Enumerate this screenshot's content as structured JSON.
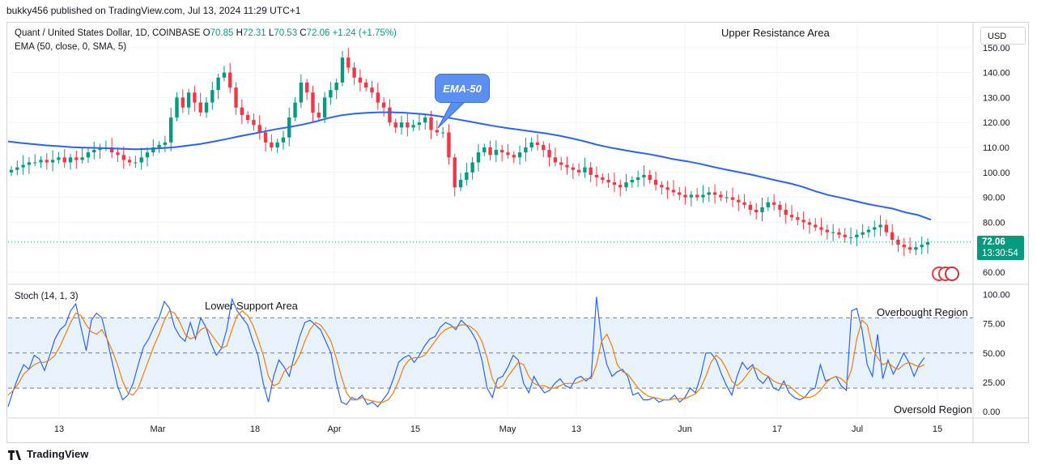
{
  "header": {
    "publisher_line": "bukky456 published on TradingView.com, Jul 13, 2024 11:29 UTC+1"
  },
  "legend": {
    "symbol": "Quant / United States Dollar, 1D, COINBASE",
    "o_label": "O",
    "o_value": "70.85",
    "h_label": "H",
    "h_value": "72.31",
    "l_label": "L",
    "l_value": "70.53",
    "c_label": "C",
    "c_value": "72.06",
    "change": "+1.24 (+1.75%)",
    "ema_line": "EMA (50, close, 0, SMA, 5)",
    "stoch_line": "Stoch (14, 1, 3)"
  },
  "currency_button": "USD",
  "last_price": {
    "price": "72.06",
    "countdown": "13:30:54"
  },
  "annotations": {
    "upper_resistance": "Upper Resistance Area",
    "lower_support": "Lower Support Area",
    "overbought": "Overbought Region",
    "oversold": "Oversold Region",
    "ema_callout": "EMA-50"
  },
  "branding": {
    "logo_text": "TradingView"
  },
  "colors": {
    "up": "#089981",
    "down": "#f23645",
    "ema": "#2962ff",
    "stoch_k": "#2962ff",
    "stoch_d": "#f57c00",
    "band_fill": "#e8f2fd"
  },
  "chart_data": [
    {
      "type": "candlestick",
      "title": "Quant / United States Dollar, 1D, COINBASE",
      "ylim": [
        57,
        153
      ],
      "yticks": [
        "60.00",
        "70.00",
        "80.00",
        "90.00",
        "100.00",
        "110.00",
        "120.00",
        "130.00",
        "140.00",
        "150.00"
      ],
      "xticks": [
        "13",
        "Mar",
        "18",
        "Apr",
        "15",
        "May",
        "13",
        "Jun",
        "17",
        "Jul",
        "15"
      ],
      "grid": true,
      "last_close": 72.06,
      "candles_close": [
        101,
        102,
        103,
        104,
        104,
        105,
        104,
        105,
        106,
        104,
        106,
        105,
        106,
        108,
        109,
        110,
        110,
        108,
        107,
        105,
        104,
        104,
        106,
        108,
        110,
        111,
        112,
        122,
        130,
        126,
        132,
        128,
        124,
        128,
        133,
        138,
        140,
        134,
        126,
        123,
        121,
        119,
        116,
        112,
        110,
        112,
        114,
        122,
        128,
        136,
        132,
        124,
        122,
        130,
        133,
        136,
        146,
        142,
        138,
        136,
        134,
        132,
        128,
        126,
        120,
        118,
        120,
        118,
        119,
        120,
        122,
        117,
        116,
        116,
        106,
        94,
        97,
        100,
        104,
        108,
        110,
        107,
        109,
        108,
        107,
        106,
        108,
        110,
        112,
        111,
        109,
        106,
        104,
        103,
        102,
        101,
        100,
        102,
        99,
        98,
        97,
        96,
        95,
        94,
        96,
        97,
        98,
        99,
        97,
        95,
        94,
        93,
        92,
        91,
        90,
        91,
        90,
        91,
        92,
        91,
        90,
        90,
        89,
        88,
        87,
        85,
        84,
        86,
        88,
        87,
        85,
        83,
        82,
        81,
        80,
        79,
        78,
        77,
        76,
        76,
        75,
        74,
        74,
        75,
        76,
        77,
        78,
        79,
        76,
        73,
        71,
        70,
        69,
        70,
        71,
        72.06
      ],
      "ema50": [
        112.4,
        111.8,
        111.3,
        110.8,
        110.5,
        110.1,
        109.9,
        109.8,
        109.6,
        109.4,
        109.3,
        109.4,
        109.7,
        110.1,
        110.7,
        111.4,
        112.3,
        113.3,
        114.4,
        115.4,
        116.4,
        117.4,
        118.2,
        119.2,
        120.4,
        121.8,
        122.9,
        123.5,
        123.9,
        124.1,
        124.1,
        123.9,
        123.5,
        123.0,
        122.2,
        121.3,
        120.4,
        119.4,
        118.5,
        117.7,
        117.0,
        116.3,
        115.6,
        114.7,
        113.6,
        112.4,
        111.0,
        109.9,
        109.0,
        108.1,
        107.3,
        106.3,
        105.2,
        104.4,
        103.4,
        102.2,
        101.1,
        100.1,
        99.1,
        97.9,
        96.7,
        95.6,
        94.2,
        92.4,
        90.9,
        89.8,
        88.6,
        87.4,
        86.4,
        85.5,
        84.0,
        82.9,
        81.0
      ]
    },
    {
      "type": "line",
      "title": "Stoch (14, 1, 3)",
      "ylim": [
        0,
        100
      ],
      "yticks": [
        "0.00",
        "25.00",
        "50.00",
        "75.00",
        "100.00"
      ],
      "bands": {
        "upper": 80,
        "middle": 50,
        "lower": 20
      },
      "series": [
        {
          "name": "%K",
          "values": [
            4,
            18,
            30,
            40,
            36,
            48,
            45,
            35,
            48,
            62,
            70,
            74,
            86,
            92,
            72,
            52,
            78,
            84,
            80,
            62,
            42,
            22,
            10,
            14,
            24,
            40,
            55,
            62,
            72,
            80,
            94,
            88,
            72,
            64,
            60,
            76,
            62,
            80,
            72,
            58,
            48,
            54,
            70,
            96,
            86,
            80,
            74,
            60,
            48,
            24,
            8,
            30,
            44,
            38,
            30,
            48,
            64,
            76,
            78,
            74,
            70,
            60,
            50,
            26,
            8,
            6,
            12,
            10,
            14,
            6,
            8,
            4,
            10,
            16,
            28,
            42,
            46,
            48,
            42,
            48,
            56,
            62,
            64,
            72,
            76,
            74,
            70,
            78,
            74,
            68,
            60,
            44,
            20,
            12,
            28,
            30,
            38,
            48,
            44,
            24,
            16,
            30,
            22,
            16,
            18,
            24,
            28,
            22,
            20,
            28,
            30,
            26,
            30,
            98,
            60,
            40,
            30,
            34,
            36,
            30,
            14,
            16,
            10,
            10,
            12,
            8,
            10,
            10,
            14,
            8,
            12,
            20,
            16,
            30,
            50,
            50,
            44,
            32,
            22,
            14,
            30,
            42,
            36,
            40,
            28,
            24,
            30,
            20,
            18,
            26,
            16,
            12,
            10,
            12,
            18,
            20,
            40,
            26,
            28,
            30,
            22,
            18,
            86,
            88,
            70,
            40,
            30,
            66,
            28,
            44,
            32,
            40,
            50,
            42,
            30,
            40,
            46
          ]
        },
        {
          "name": "%D",
          "values": [
            14,
            18,
            24,
            32,
            36,
            40,
            42,
            42,
            44,
            48,
            56,
            66,
            76,
            84,
            82,
            74,
            68,
            66,
            70,
            62,
            52,
            40,
            26,
            16,
            14,
            20,
            32,
            44,
            56,
            66,
            78,
            86,
            84,
            76,
            66,
            62,
            64,
            70,
            72,
            66,
            60,
            54,
            56,
            70,
            82,
            86,
            82,
            74,
            62,
            48,
            30,
            22,
            24,
            34,
            38,
            40,
            48,
            60,
            70,
            76,
            74,
            68,
            60,
            46,
            30,
            16,
            10,
            10,
            12,
            10,
            9,
            8,
            8,
            10,
            16,
            26,
            38,
            44,
            46,
            46,
            48,
            54,
            60,
            66,
            70,
            72,
            72,
            74,
            74,
            72,
            68,
            60,
            46,
            28,
            20,
            22,
            30,
            36,
            42,
            40,
            30,
            24,
            22,
            22,
            20,
            20,
            22,
            24,
            24,
            24,
            26,
            28,
            28,
            40,
            60,
            66,
            56,
            40,
            34,
            32,
            26,
            20,
            16,
            13,
            12,
            11,
            10,
            10,
            11,
            11,
            11,
            13,
            15,
            20,
            30,
            42,
            48,
            44,
            36,
            26,
            22,
            26,
            32,
            38,
            36,
            32,
            30,
            26,
            24,
            23,
            22,
            18,
            14,
            12,
            12,
            14,
            18,
            24,
            28,
            30,
            28,
            24,
            36,
            62,
            78,
            74,
            54,
            46,
            40,
            42,
            38,
            36,
            40,
            42,
            40,
            38,
            40
          ]
        }
      ]
    }
  ]
}
